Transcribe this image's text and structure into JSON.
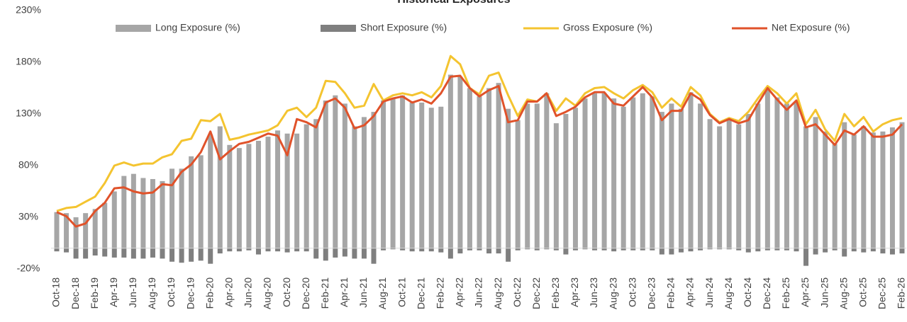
{
  "chart_data": {
    "type": "bar",
    "title": "Historical Exposures",
    "categories": [
      "Oct-18",
      null,
      "Dec-18",
      null,
      "Feb-19",
      null,
      "Apr-19",
      null,
      "Jun-19",
      null,
      "Aug-19",
      null,
      "Oct-19",
      null,
      "Dec-19",
      null,
      "Feb-20",
      null,
      "Apr-20",
      null,
      "Jun-20",
      null,
      "Aug-20",
      null,
      "Oct-20",
      null,
      "Dec-20",
      null,
      "Feb-21",
      null,
      "Apr-21",
      null,
      "Jun-21",
      null,
      "Aug-21",
      null,
      "Oct-21",
      null,
      "Dec-21",
      null,
      "Feb-22",
      null,
      "Apr-22",
      null,
      "Jun-22",
      null,
      "Aug-22",
      null,
      "Oct-22",
      null,
      "Dec-22",
      null,
      "Feb-23",
      null,
      "Apr-23",
      null,
      "Jun-23",
      null,
      "Aug-23",
      null,
      "Oct-23",
      null,
      "Dec-23",
      null,
      "Feb-24",
      null,
      "Apr-24",
      null,
      "Jun-24",
      null,
      "Aug-24",
      null,
      "Oct-24",
      null,
      "Dec-24",
      null,
      "Feb-25",
      null,
      "Apr-25",
      null,
      "Jun-25",
      null,
      "Aug-25",
      null,
      "Oct-25",
      null,
      "Dec-25",
      null,
      "Feb-26"
    ],
    "series": [
      {
        "name": "Long Exposure (%)",
        "type": "bar",
        "color": "#a6a6a6",
        "values": [
          35,
          34,
          30,
          34,
          38,
          44,
          55,
          70,
          72,
          68,
          67,
          65,
          77,
          77,
          89,
          90,
          110,
          118,
          100,
          97,
          101,
          104,
          108,
          114,
          111,
          111,
          120,
          125,
          143,
          148,
          140,
          118,
          127,
          132,
          143,
          145,
          148,
          141,
          141,
          136,
          137,
          168,
          166,
          155,
          147,
          155,
          160,
          135,
          124,
          140,
          140,
          150,
          121,
          130,
          136,
          145,
          150,
          150,
          145,
          137,
          146,
          150,
          147,
          132,
          140,
          135,
          151,
          140,
          125,
          118,
          124,
          120,
          130,
          140,
          153,
          146,
          140,
          142,
          118,
          127,
          113,
          101,
          122,
          110,
          118,
          112,
          113,
          117,
          122
        ]
      },
      {
        "name": "Short Exposure (%)",
        "type": "bar",
        "color": "#7f7f7f",
        "values": [
          -3,
          -4,
          -10,
          -10,
          -7,
          -8,
          -9,
          -9,
          -10,
          -10,
          -9,
          -10,
          -13,
          -14,
          -13,
          -12,
          -15,
          -5,
          -3,
          -3,
          -2,
          -6,
          -3,
          -3,
          -4,
          -3,
          -3,
          -10,
          -12,
          -9,
          -8,
          -10,
          -10,
          -15,
          -2,
          -1,
          -2,
          -3,
          -3,
          -3,
          -4,
          -10,
          -5,
          -2,
          -2,
          -5,
          -5,
          -13,
          -2,
          -1,
          -2,
          -1,
          -2,
          -6,
          -2,
          -1,
          -2,
          -2,
          -3,
          -2,
          -2,
          -2,
          -2,
          -6,
          -6,
          -4,
          -3,
          -2,
          -1,
          -1,
          -1,
          -2,
          -4,
          -3,
          -2,
          -2,
          -2,
          -3,
          -17,
          -6,
          -4,
          -2,
          -8,
          -3,
          -4,
          -3,
          -5,
          -6,
          -5
        ]
      },
      {
        "name": "Gross Exposure (%)",
        "type": "line",
        "color": "#f4c430",
        "values": [
          36,
          39,
          40,
          45,
          50,
          63,
          80,
          83,
          80,
          82,
          82,
          88,
          91,
          104,
          106,
          124,
          123,
          130,
          105,
          107,
          110,
          112,
          114,
          119,
          133,
          136,
          127,
          136,
          162,
          161,
          150,
          136,
          138,
          159,
          143,
          148,
          150,
          148,
          151,
          146,
          157,
          186,
          178,
          155,
          149,
          167,
          170,
          148,
          128,
          144,
          142,
          150,
          133,
          145,
          138,
          150,
          155,
          156,
          150,
          145,
          153,
          158,
          151,
          136,
          145,
          137,
          156,
          148,
          130,
          122,
          126,
          123,
          132,
          145,
          157,
          150,
          140,
          150,
          120,
          134,
          115,
          104,
          130,
          118,
          127,
          113,
          120,
          124,
          126
        ]
      },
      {
        "name": "Net Exposure (%)",
        "type": "line",
        "color": "#e0522a",
        "values": [
          35,
          31,
          21,
          24,
          36,
          44,
          58,
          59,
          55,
          53,
          54,
          62,
          61,
          74,
          81,
          93,
          113,
          86,
          94,
          101,
          103,
          107,
          111,
          109,
          90,
          125,
          122,
          117,
          141,
          145,
          136,
          116,
          119,
          128,
          142,
          145,
          147,
          141,
          144,
          140,
          150,
          166,
          167,
          155,
          147,
          153,
          157,
          122,
          124,
          142,
          142,
          150,
          128,
          132,
          137,
          146,
          151,
          151,
          140,
          138,
          147,
          156,
          146,
          124,
          133,
          133,
          150,
          144,
          129,
          121,
          125,
          121,
          124,
          140,
          155,
          144,
          134,
          143,
          117,
          120,
          110,
          100,
          114,
          110,
          118,
          108,
          108,
          110,
          120
        ]
      }
    ],
    "ylim": [
      -20,
      230
    ],
    "yticks": [
      {
        "value": -20,
        "label": "-20%"
      },
      {
        "value": 30,
        "label": "30%"
      },
      {
        "value": 80,
        "label": "80%"
      },
      {
        "value": 130,
        "label": "130%"
      },
      {
        "value": 180,
        "label": "180%"
      },
      {
        "value": 230,
        "label": "230%"
      }
    ],
    "grid": false,
    "legend": "top"
  }
}
